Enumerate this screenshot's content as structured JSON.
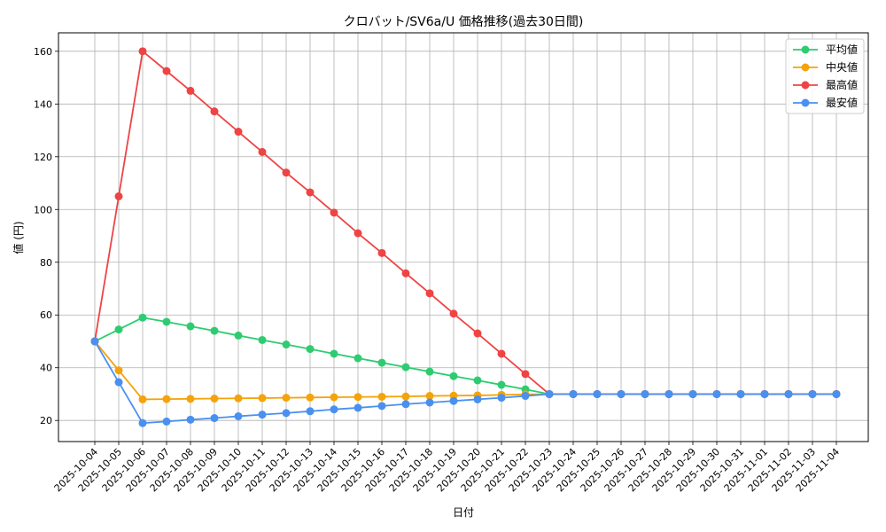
{
  "chart_data": {
    "type": "line",
    "title": "クロバット/SV6a/U 価格推移(過去30日間)",
    "xlabel": "日付",
    "ylabel": "値 (円)",
    "grid": true,
    "legend_position": "top-right",
    "ylim": [
      12,
      167
    ],
    "yticks": [
      20,
      40,
      60,
      80,
      100,
      120,
      140,
      160
    ],
    "categories": [
      "2025-10-04",
      "2025-10-05",
      "2025-10-06",
      "2025-10-07",
      "2025-10-08",
      "2025-10-09",
      "2025-10-10",
      "2025-10-11",
      "2025-10-12",
      "2025-10-13",
      "2025-10-14",
      "2025-10-15",
      "2025-10-16",
      "2025-10-17",
      "2025-10-18",
      "2025-10-19",
      "2025-10-20",
      "2025-10-21",
      "2025-10-22",
      "2025-10-23",
      "2025-10-24",
      "2025-10-25",
      "2025-10-26",
      "2025-10-27",
      "2025-10-28",
      "2025-10-29",
      "2025-10-30",
      "2025-10-31",
      "2025-11-01",
      "2025-11-02",
      "2025-11-03",
      "2025-11-04"
    ],
    "series": [
      {
        "name": "平均値",
        "color": "#2ecc71",
        "values": [
          50,
          54.5,
          59,
          57.4,
          55.7,
          54,
          52.2,
          50.5,
          48.8,
          47.1,
          45.3,
          43.6,
          41.9,
          40.2,
          38.5,
          36.8,
          35.2,
          33.5,
          31.8,
          30,
          30,
          30,
          30,
          30,
          30,
          30,
          30,
          30,
          30,
          30,
          30,
          30
        ]
      },
      {
        "name": "中央値",
        "color": "#f5a30a",
        "values": [
          50,
          39,
          28,
          28.1,
          28.2,
          28.3,
          28.4,
          28.5,
          28.6,
          28.7,
          28.8,
          28.9,
          29.0,
          29.1,
          29.3,
          29.4,
          29.5,
          29.7,
          29.9,
          30,
          30,
          30,
          30,
          30,
          30,
          30,
          30,
          30,
          30,
          30,
          30,
          30
        ]
      },
      {
        "name": "最高値",
        "color": "#ef4444",
        "values": [
          50,
          105,
          160,
          152.5,
          145,
          137.2,
          129.5,
          121.8,
          114,
          106.5,
          98.8,
          91,
          83.5,
          75.8,
          68.2,
          60.5,
          53,
          45.3,
          37.6,
          30,
          30,
          30,
          30,
          30,
          30,
          30,
          30,
          30,
          30,
          30,
          30,
          30
        ]
      },
      {
        "name": "最安値",
        "color": "#4a90f0",
        "values": [
          50,
          34.5,
          19,
          19.6,
          20.3,
          20.9,
          21.6,
          22.2,
          22.8,
          23.5,
          24.2,
          24.8,
          25.5,
          26.2,
          26.8,
          27.4,
          28,
          28.6,
          29.3,
          30,
          30,
          30,
          30,
          30,
          30,
          30,
          30,
          30,
          30,
          30,
          30,
          30
        ]
      }
    ]
  }
}
